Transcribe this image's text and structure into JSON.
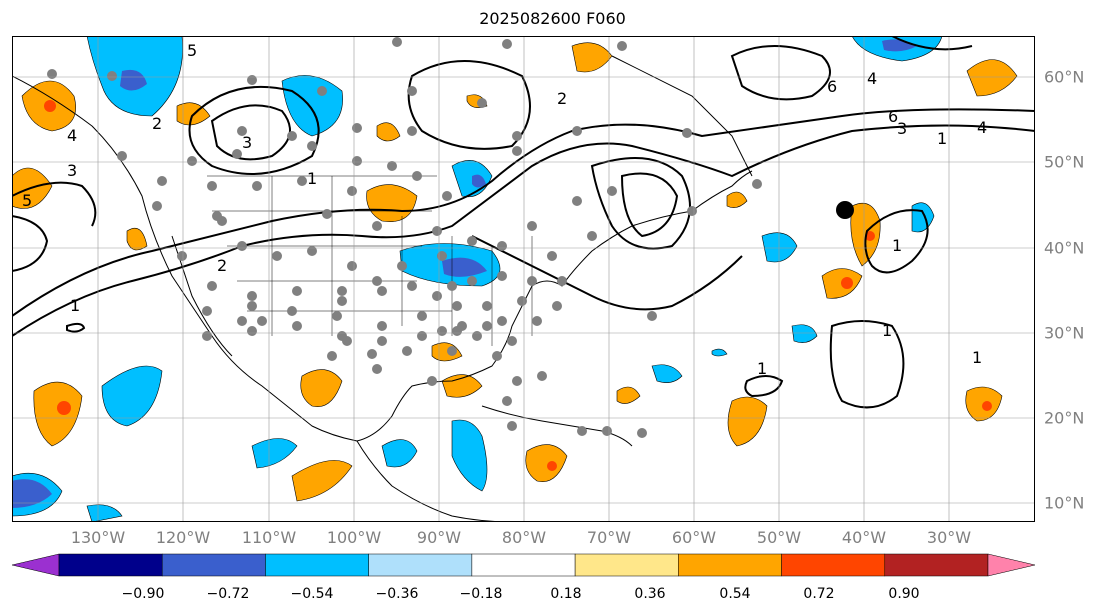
{
  "title": "2025082600 F060",
  "longitude_labels": [
    "130°W",
    "120°W",
    "110°W",
    "100°W",
    "90°W",
    "80°W",
    "70°W",
    "60°W",
    "50°W",
    "40°W",
    "30°W"
  ],
  "latitude_labels": [
    "60°N",
    "50°N",
    "40°N",
    "30°N",
    "20°N",
    "10°N"
  ],
  "colorbar": {
    "ticks": [
      "−0.90",
      "−0.72",
      "−0.54",
      "−0.36",
      "−0.18",
      "0.18",
      "0.36",
      "0.54",
      "0.72",
      "0.90"
    ],
    "colors": [
      "#9b30d0",
      "#00008b",
      "#3a5fcd",
      "#00bfff",
      "#afe0fb",
      "#ffffff",
      "#ffe78a",
      "#ffa500",
      "#ff4500",
      "#b22222",
      "#ff82ab"
    ]
  },
  "contour_labels": [
    "1",
    "2",
    "3",
    "4",
    "5",
    "6"
  ]
}
